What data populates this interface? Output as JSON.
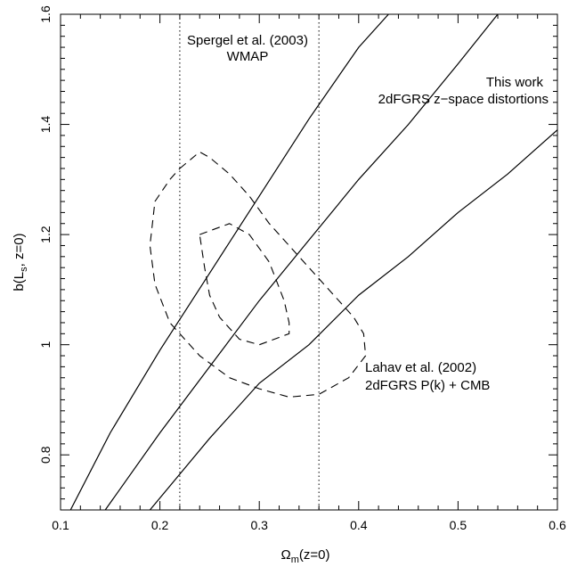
{
  "chart_data": {
    "type": "line",
    "xlabel": {
      "main": "Ω",
      "sub": "m",
      "rest": "(z=0)"
    },
    "ylabel": {
      "main": "b(L",
      "sub": "s",
      "rest": ", z=0)"
    },
    "xlim": [
      0.1,
      0.6
    ],
    "ylim": [
      0.7,
      1.6
    ],
    "x_ticks": [
      "0.1",
      "0.2",
      "0.3",
      "0.4",
      "0.5",
      "0.6"
    ],
    "y_ticks": [
      "0.8",
      "1",
      "1.2",
      "1.4",
      "1.6"
    ],
    "grid": false,
    "curves": [
      {
        "style": "solid",
        "x": [
          0.11,
          0.15,
          0.2,
          0.25,
          0.3,
          0.35,
          0.4,
          0.43
        ],
        "y": [
          0.7,
          0.84,
          0.99,
          1.13,
          1.27,
          1.41,
          1.54,
          1.6
        ]
      },
      {
        "style": "solid",
        "x": [
          0.145,
          0.2,
          0.25,
          0.3,
          0.35,
          0.4,
          0.45,
          0.5,
          0.54
        ],
        "y": [
          0.7,
          0.84,
          0.96,
          1.08,
          1.19,
          1.3,
          1.4,
          1.51,
          1.6
        ]
      },
      {
        "style": "solid",
        "x": [
          0.19,
          0.25,
          0.3,
          0.35,
          0.4,
          0.45,
          0.5,
          0.55,
          0.6
        ],
        "y": [
          0.7,
          0.83,
          0.93,
          1.0,
          1.09,
          1.16,
          1.24,
          1.31,
          1.39
        ]
      }
    ],
    "contours": [
      {
        "style": "dashed",
        "x": [
          0.22,
          0.24,
          0.25,
          0.27,
          0.29,
          0.31,
          0.34,
          0.37,
          0.395,
          0.405,
          0.407,
          0.39,
          0.36,
          0.33,
          0.3,
          0.27,
          0.24,
          0.21,
          0.195,
          0.19,
          0.195,
          0.21,
          0.22
        ],
        "y": [
          1.32,
          1.35,
          1.34,
          1.31,
          1.27,
          1.22,
          1.16,
          1.1,
          1.05,
          1.02,
          0.98,
          0.94,
          0.91,
          0.905,
          0.92,
          0.94,
          0.98,
          1.04,
          1.11,
          1.18,
          1.26,
          1.3,
          1.32
        ]
      },
      {
        "style": "dashed",
        "x": [
          0.24,
          0.27,
          0.29,
          0.31,
          0.325,
          0.33,
          0.33,
          0.3,
          0.28,
          0.26,
          0.25,
          0.245,
          0.24
        ],
        "y": [
          1.2,
          1.22,
          1.2,
          1.15,
          1.08,
          1.04,
          1.02,
          1.0,
          1.01,
          1.05,
          1.09,
          1.14,
          1.2
        ]
      }
    ],
    "vlines": [
      {
        "style": "dotted",
        "x": 0.22
      },
      {
        "style": "dotted",
        "x": 0.36
      }
    ],
    "annotations": [
      {
        "id": "spergel",
        "lines": [
          "Spergel et al. (2003)",
          "WMAP"
        ]
      },
      {
        "id": "thiswork",
        "lines": [
          "This work",
          "2dFGRS z−space distortions"
        ]
      },
      {
        "id": "lahav",
        "lines": [
          "Lahav et al. (2002)",
          "2dFGRS P(k) + CMB"
        ]
      }
    ]
  }
}
